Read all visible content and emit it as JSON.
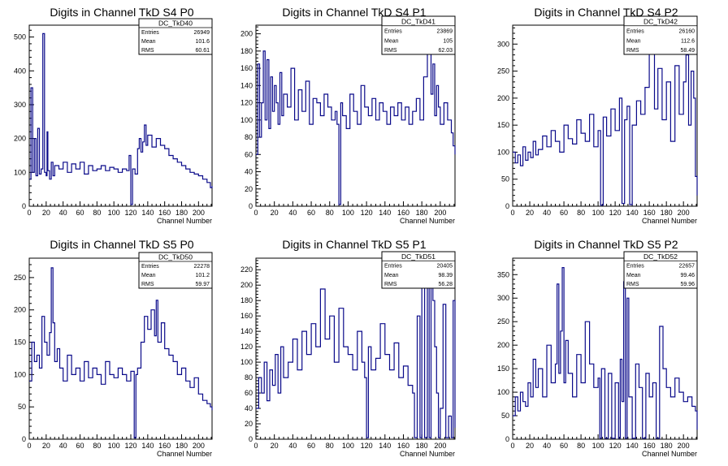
{
  "page": {
    "background": "#ffffff"
  },
  "style": {
    "line_color": "#0a0a8a",
    "axis_color": "#000000"
  },
  "chart_data": [
    {
      "type": "line",
      "step": true,
      "title": "Digits in Channel TkD S4 P0",
      "xlabel": "Channel Number",
      "ylabel": "",
      "xlim": [
        0,
        216
      ],
      "ylim": [
        0,
        535
      ],
      "xticks": [
        0,
        20,
        40,
        60,
        80,
        100,
        120,
        140,
        160,
        180,
        200
      ],
      "yticks": [
        0,
        100,
        200,
        300,
        400,
        500
      ],
      "stats": {
        "name": "DC_TkD40",
        "rows": [
          [
            "Entries",
            "26949"
          ],
          [
            "Mean",
            "101.6"
          ],
          [
            "RMS",
            "60.61"
          ]
        ]
      },
      "series": [
        {
          "x": [
            0,
            2,
            4,
            6,
            8,
            10,
            12,
            14,
            16,
            18,
            20,
            21,
            22,
            24,
            26,
            28,
            30,
            35,
            40,
            45,
            50,
            55,
            60,
            65,
            70,
            75,
            80,
            85,
            90,
            95,
            100,
            105,
            110,
            115,
            118,
            120,
            122,
            125,
            128,
            130,
            132,
            134,
            136,
            138,
            140,
            145,
            150,
            155,
            160,
            165,
            170,
            175,
            180,
            185,
            190,
            195,
            200,
            205,
            210,
            214,
            216
          ],
          "y": [
            80,
            350,
            100,
            200,
            90,
            230,
            95,
            110,
            510,
            100,
            90,
            220,
            105,
            80,
            130,
            90,
            120,
            110,
            130,
            100,
            125,
            110,
            130,
            95,
            120,
            105,
            110,
            120,
            105,
            115,
            110,
            100,
            110,
            105,
            150,
            5,
            110,
            95,
            170,
            200,
            160,
            190,
            240,
            180,
            210,
            175,
            200,
            180,
            170,
            150,
            140,
            130,
            120,
            110,
            100,
            95,
            90,
            80,
            70,
            55,
            60
          ]
        }
      ]
    },
    {
      "type": "line",
      "step": true,
      "title": "Digits in Channel TkD S4 P1",
      "xlabel": "Channel Number",
      "ylabel": "",
      "xlim": [
        0,
        216
      ],
      "ylim": [
        0,
        210
      ],
      "xticks": [
        0,
        20,
        40,
        60,
        80,
        100,
        120,
        140,
        160,
        180,
        200
      ],
      "yticks": [
        0,
        20,
        40,
        60,
        80,
        100,
        120,
        140,
        160,
        180,
        200
      ],
      "stats": {
        "name": "DC_TkD41",
        "rows": [
          [
            "Entries",
            "23869"
          ],
          [
            "Mean",
            "105"
          ],
          [
            "RMS",
            "62.03"
          ]
        ]
      },
      "series": [
        {
          "x": [
            0,
            2,
            4,
            6,
            8,
            10,
            12,
            14,
            16,
            18,
            20,
            22,
            24,
            26,
            28,
            30,
            34,
            38,
            42,
            46,
            50,
            54,
            58,
            62,
            66,
            70,
            74,
            78,
            82,
            86,
            88,
            90,
            92,
            94,
            98,
            102,
            106,
            110,
            114,
            118,
            122,
            126,
            130,
            134,
            138,
            142,
            146,
            150,
            154,
            158,
            162,
            166,
            170,
            174,
            178,
            182,
            186,
            188,
            190,
            192,
            194,
            196,
            198,
            200,
            204,
            208,
            212,
            214,
            216
          ],
          "y": [
            60,
            165,
            80,
            120,
            180,
            100,
            170,
            90,
            150,
            110,
            140,
            120,
            95,
            155,
            105,
            130,
            115,
            160,
            100,
            135,
            110,
            145,
            95,
            125,
            120,
            105,
            130,
            115,
            100,
            110,
            95,
            2,
            120,
            105,
            90,
            130,
            110,
            95,
            140,
            115,
            105,
            125,
            100,
            120,
            110,
            95,
            115,
            105,
            120,
            100,
            115,
            95,
            110,
            125,
            100,
            150,
            185,
            200,
            130,
            165,
            105,
            140,
            115,
            95,
            120,
            100,
            85,
            70,
            60
          ]
        }
      ]
    },
    {
      "type": "line",
      "step": true,
      "title": "Digits in Channel TkD S4 P2",
      "xlabel": "Channel Number",
      "ylabel": "",
      "xlim": [
        0,
        216
      ],
      "ylim": [
        0,
        335
      ],
      "xticks": [
        0,
        20,
        40,
        60,
        80,
        100,
        120,
        140,
        160,
        180,
        200
      ],
      "yticks": [
        0,
        50,
        100,
        150,
        200,
        250,
        300
      ],
      "stats": {
        "name": "DC_TkD42",
        "rows": [
          [
            "Entries",
            "26160"
          ],
          [
            "Mean",
            "112.6"
          ],
          [
            "RMS",
            "58.49"
          ]
        ]
      },
      "series": [
        {
          "x": [
            0,
            3,
            6,
            9,
            12,
            15,
            18,
            21,
            24,
            27,
            30,
            35,
            40,
            45,
            50,
            55,
            60,
            65,
            70,
            75,
            80,
            85,
            90,
            95,
            100,
            103,
            106,
            110,
            115,
            120,
            125,
            128,
            131,
            134,
            137,
            140,
            145,
            150,
            155,
            160,
            163,
            166,
            170,
            175,
            180,
            185,
            190,
            195,
            200,
            203,
            206,
            209,
            212,
            214,
            216
          ],
          "y": [
            100,
            80,
            95,
            75,
            110,
            85,
            100,
            90,
            120,
            95,
            105,
            130,
            110,
            140,
            120,
            100,
            150,
            125,
            115,
            160,
            135,
            120,
            170,
            110,
            140,
            2,
            165,
            130,
            180,
            140,
            200,
            5,
            160,
            185,
            3,
            150,
            195,
            170,
            220,
            290,
            310,
            180,
            255,
            160,
            230,
            120,
            260,
            170,
            230,
            280,
            150,
            250,
            200,
            55,
            20
          ]
        }
      ]
    },
    {
      "type": "line",
      "step": true,
      "title": "Digits in Channel TkD S5 P0",
      "xlabel": "Channel Number",
      "ylabel": "",
      "xlim": [
        0,
        216
      ],
      "ylim": [
        0,
        280
      ],
      "xticks": [
        0,
        20,
        40,
        60,
        80,
        100,
        120,
        140,
        160,
        180,
        200
      ],
      "yticks": [
        0,
        50,
        100,
        150,
        200,
        250
      ],
      "stats": {
        "name": "DC_TkD50",
        "rows": [
          [
            "Entries",
            "22278"
          ],
          [
            "Mean",
            "101.2"
          ],
          [
            "RMS",
            "59.97"
          ]
        ]
      },
      "series": [
        {
          "x": [
            0,
            3,
            6,
            9,
            12,
            15,
            18,
            21,
            24,
            26,
            28,
            30,
            33,
            36,
            40,
            45,
            50,
            55,
            60,
            65,
            70,
            75,
            80,
            85,
            90,
            95,
            100,
            105,
            110,
            115,
            120,
            124,
            126,
            128,
            132,
            136,
            140,
            144,
            148,
            150,
            152,
            156,
            160,
            165,
            170,
            175,
            180,
            185,
            190,
            195,
            200,
            205,
            210,
            214,
            216
          ],
          "y": [
            90,
            150,
            120,
            130,
            110,
            190,
            150,
            130,
            165,
            265,
            180,
            120,
            140,
            110,
            90,
            130,
            100,
            110,
            90,
            120,
            95,
            110,
            100,
            85,
            120,
            100,
            95,
            110,
            100,
            90,
            105,
            2,
            100,
            110,
            150,
            190,
            170,
            200,
            160,
            215,
            150,
            180,
            140,
            130,
            120,
            100,
            110,
            90,
            80,
            95,
            70,
            60,
            55,
            50,
            45
          ]
        }
      ]
    },
    {
      "type": "line",
      "step": true,
      "title": "Digits in Channel TkD S5 P1",
      "xlabel": "Channel Number",
      "ylabel": "",
      "xlim": [
        0,
        216
      ],
      "ylim": [
        0,
        235
      ],
      "xticks": [
        0,
        20,
        40,
        60,
        80,
        100,
        120,
        140,
        160,
        180,
        200
      ],
      "yticks": [
        0,
        20,
        40,
        60,
        80,
        100,
        120,
        140,
        160,
        180,
        200,
        220
      ],
      "stats": {
        "name": "DC_TkD51",
        "rows": [
          [
            "Entries",
            "20405"
          ],
          [
            "Mean",
            "98.39"
          ],
          [
            "RMS",
            "56.28"
          ]
        ]
      },
      "series": [
        {
          "x": [
            0,
            3,
            6,
            9,
            12,
            15,
            18,
            21,
            24,
            27,
            30,
            35,
            40,
            45,
            50,
            55,
            60,
            65,
            70,
            75,
            80,
            85,
            90,
            95,
            100,
            105,
            110,
            115,
            118,
            120,
            122,
            125,
            130,
            135,
            140,
            145,
            150,
            155,
            160,
            165,
            170,
            172,
            175,
            178,
            180,
            183,
            186,
            188,
            190,
            192,
            194,
            196,
            198,
            200,
            203,
            206,
            209,
            212,
            214,
            216
          ],
          "y": [
            40,
            80,
            60,
            100,
            50,
            90,
            70,
            110,
            60,
            120,
            80,
            100,
            130,
            90,
            140,
            110,
            150,
            120,
            195,
            130,
            160,
            100,
            170,
            120,
            110,
            90,
            140,
            100,
            80,
            2,
            120,
            90,
            105,
            150,
            110,
            90,
            125,
            80,
            95,
            70,
            60,
            2,
            160,
            2,
            210,
            2,
            200,
            2,
            215,
            180,
            120,
            60,
            2,
            40,
            175,
            2,
            30,
            2,
            180,
            15
          ]
        }
      ]
    },
    {
      "type": "line",
      "step": true,
      "title": "Digits in Channel TkD S5 P2",
      "xlabel": "Channel Number",
      "ylabel": "",
      "xlim": [
        0,
        216
      ],
      "ylim": [
        0,
        385
      ],
      "xticks": [
        0,
        20,
        40,
        60,
        80,
        100,
        120,
        140,
        160,
        180,
        200
      ],
      "yticks": [
        0,
        50,
        100,
        150,
        200,
        250,
        300,
        350
      ],
      "stats": {
        "name": "DC_TkD52",
        "rows": [
          [
            "Entries",
            "22657"
          ],
          [
            "Mean",
            "99.46"
          ],
          [
            "RMS",
            "59.96"
          ]
        ]
      },
      "series": [
        {
          "x": [
            0,
            3,
            6,
            9,
            12,
            15,
            18,
            21,
            24,
            27,
            30,
            35,
            40,
            45,
            50,
            52,
            54,
            56,
            58,
            60,
            62,
            65,
            70,
            75,
            80,
            85,
            90,
            95,
            100,
            102,
            104,
            108,
            112,
            116,
            120,
            124,
            126,
            128,
            130,
            132,
            134,
            136,
            140,
            144,
            148,
            152,
            156,
            160,
            164,
            168,
            172,
            176,
            180,
            185,
            190,
            195,
            200,
            205,
            210,
            214,
            216
          ],
          "y": [
            50,
            90,
            60,
            100,
            80,
            70,
            120,
            90,
            170,
            110,
            150,
            90,
            200,
            120,
            160,
            330,
            140,
            230,
            365,
            120,
            210,
            140,
            90,
            180,
            120,
            250,
            160,
            110,
            130,
            2,
            150,
            2,
            140,
            2,
            120,
            2,
            170,
            80,
            335,
            2,
            300,
            90,
            2,
            160,
            110,
            2,
            140,
            90,
            120,
            2,
            240,
            150,
            110,
            90,
            130,
            100,
            80,
            90,
            70,
            60,
            20
          ]
        }
      ]
    }
  ]
}
